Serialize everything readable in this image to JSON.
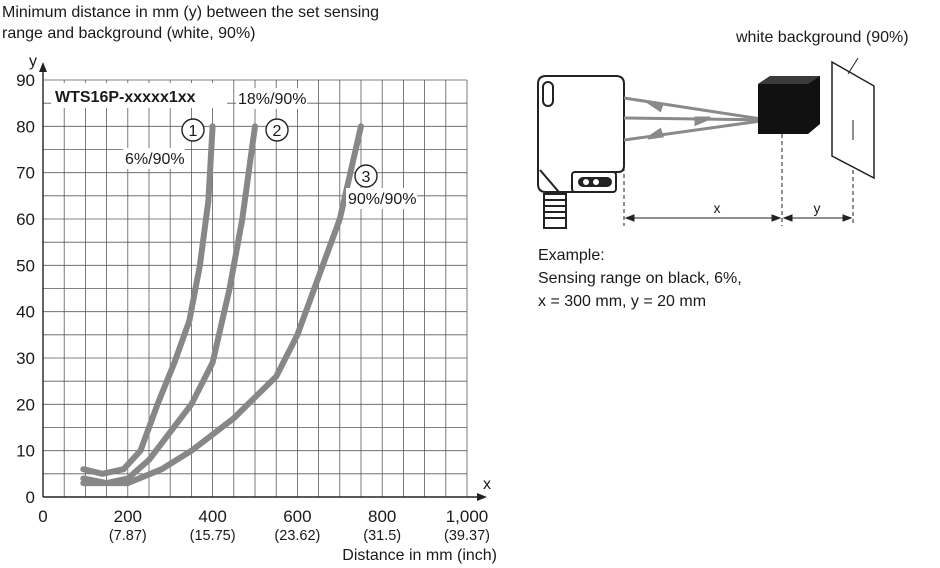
{
  "chart_data": {
    "type": "line",
    "title": "",
    "ylabel_lines": [
      "Minimum distance in mm (y) between the set sensing",
      "range and background (white, 90%)"
    ],
    "y_axis_letter": "y",
    "x_axis_letter": "x",
    "xlabel": "Distance in mm (inch)",
    "model_label": "WTS16P-xxxxx1xx",
    "xlim": [
      0,
      1000
    ],
    "ylim": [
      0,
      90
    ],
    "grid": true,
    "x_ticks": [
      {
        "label": "0",
        "sub": ""
      },
      {
        "label": "200",
        "sub": "(7.87)"
      },
      {
        "label": "400",
        "sub": "(15.75)"
      },
      {
        "label": "600",
        "sub": "(23.62)"
      },
      {
        "label": "800",
        "sub": "(31.5)"
      },
      {
        "label": "1,000",
        "sub": "(39.37)"
      }
    ],
    "y_ticks": [
      "0",
      "10",
      "20",
      "30",
      "40",
      "50",
      "60",
      "70",
      "80",
      "90"
    ],
    "series": [
      {
        "marker": "1",
        "name": "6%/90%",
        "x": [
          95,
          140,
          190,
          230,
          270,
          310,
          345,
          370,
          390,
          400
        ],
        "y": [
          6,
          5,
          6,
          10,
          20,
          29,
          38,
          50,
          64,
          80
        ]
      },
      {
        "marker": "2",
        "name": "18%/90%",
        "x": [
          95,
          150,
          200,
          250,
          300,
          350,
          400,
          440,
          470,
          500
        ],
        "y": [
          4,
          3,
          4,
          8,
          14,
          20,
          29,
          45,
          60,
          80
        ]
      },
      {
        "marker": "3",
        "name": "90%/90%",
        "x": [
          95,
          150,
          200,
          280,
          350,
          450,
          550,
          600,
          660,
          700,
          750
        ],
        "y": [
          3,
          3,
          3,
          6,
          10,
          17,
          26,
          35,
          50,
          60,
          80
        ]
      }
    ]
  },
  "diagram": {
    "background_label": "white background (90%)",
    "x_label": "x",
    "y_label": "y",
    "example_lines": [
      "Example:",
      "Sensing range on black, 6%,",
      "x = 300 mm, y = 20 mm"
    ]
  },
  "colors": {
    "curve": "#878787",
    "grid": "#5a5a5a",
    "text": "#1a1a1a"
  }
}
